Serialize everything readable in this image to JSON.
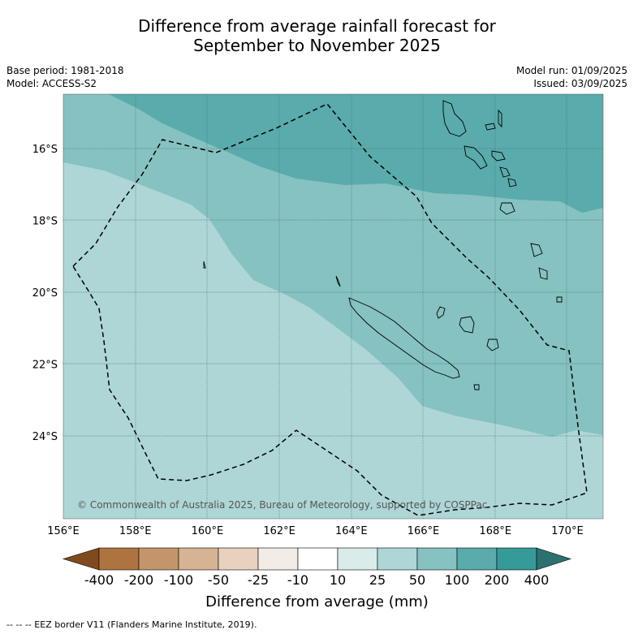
{
  "title_line1": "Difference from average rainfall forecast for",
  "title_line2": "September to November 2025",
  "meta": {
    "base_period": "Base period: 1981-2018",
    "model": "Model: ACCESS-S2",
    "model_run": "Model run: 01/09/2025",
    "issued": "Issued: 03/09/2025"
  },
  "map": {
    "region": "New Caledonia",
    "lon_range": [
      156,
      171
    ],
    "lat_range": [
      -26.4,
      -14.6
    ],
    "x_ticks": [
      "156°E",
      "158°E",
      "160°E",
      "162°E",
      "164°E",
      "166°E",
      "168°E",
      "170°E"
    ],
    "y_ticks": [
      "16°S",
      "18°S",
      "20°S",
      "22°S",
      "24°S"
    ],
    "copyright": "© Commonwealth of Australia 2025, Bureau of Meteorology, supported by COSPPac",
    "gridlines": true
  },
  "colorbar": {
    "labels": [
      "-400",
      "-200",
      "-100",
      "-50",
      "-25",
      "-10",
      "10",
      "25",
      "50",
      "100",
      "200",
      "400"
    ],
    "colors": [
      "#7f4a1e",
      "#ae7440",
      "#c4956a",
      "#d6b392",
      "#e8d2bf",
      "#f1ece8",
      "#ffffff",
      "#d9ecea",
      "#aed6d6",
      "#85c2c1",
      "#5aabab",
      "#359b98",
      "#2a7170"
    ],
    "title": "Difference from average (mm)"
  },
  "footnote": "--  --  -- EEZ border V11 (Flanders Marine Institute, 2019)."
}
